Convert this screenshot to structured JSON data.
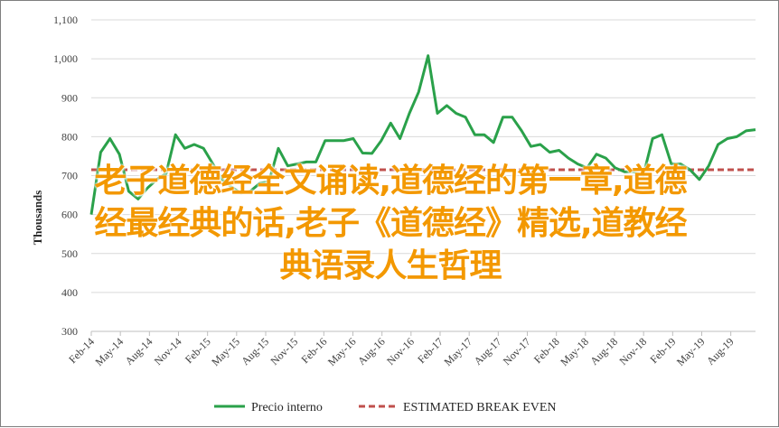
{
  "chart_data": {
    "type": "line",
    "ylabel": "Thousands",
    "ylim": [
      300,
      1100
    ],
    "yticks": [
      "300",
      "400",
      "500",
      "600",
      "700",
      "800",
      "900",
      "1,000",
      "1,100"
    ],
    "xticks": [
      "Feb-14",
      "May-14",
      "Aug-14",
      "Nov-14",
      "Feb-15",
      "May-15",
      "Aug-15",
      "Nov-15",
      "Feb-16",
      "May-16",
      "Aug-16",
      "Nov-16",
      "Feb-17",
      "May-17",
      "Aug-17",
      "Nov-17",
      "Feb-18",
      "May-18",
      "Aug-18",
      "Nov-18",
      "Feb-19",
      "May-19",
      "Aug-19"
    ],
    "grid": "horizontal",
    "legend_position": "bottom",
    "series": [
      {
        "name": "Precio interno",
        "color": "#2aa14a",
        "style": "solid",
        "values": [
          600,
          760,
          795,
          755,
          660,
          640,
          668,
          690,
          705,
          805,
          770,
          780,
          770,
          730,
          690,
          670,
          655,
          660,
          680,
          685,
          770,
          725,
          730,
          735,
          735,
          790,
          790,
          790,
          795,
          758,
          757,
          790,
          835,
          795,
          860,
          915,
          1008,
          860,
          880,
          860,
          850,
          805,
          805,
          785,
          850,
          850,
          815,
          775,
          780,
          760,
          765,
          745,
          730,
          720,
          755,
          745,
          720,
          710,
          710,
          700,
          795,
          805,
          730,
          730,
          715,
          690,
          725,
          780,
          795,
          800,
          815,
          818
        ]
      },
      {
        "name": "ESTIMATED BREAK EVEN",
        "color": "#c0504d",
        "style": "dashed",
        "values": [
          715,
          715,
          715,
          715,
          715,
          715,
          715,
          715,
          715,
          715,
          715,
          715,
          715,
          715,
          715,
          715,
          715,
          715,
          715,
          715,
          715,
          715,
          715,
          715,
          715,
          715,
          715,
          715,
          715,
          715,
          715,
          715,
          715,
          715,
          715,
          715,
          715,
          715,
          715,
          715,
          715,
          715,
          715,
          715,
          715,
          715,
          715,
          715,
          715,
          715,
          715,
          715,
          715,
          715,
          715,
          715,
          715,
          715,
          715,
          715,
          715,
          715,
          715,
          715,
          715,
          715,
          715,
          715,
          715,
          715,
          715,
          715
        ]
      }
    ]
  },
  "overlay": {
    "lines": [
      "老子道德经全文诵读,道德经的第一章,道德",
      "经最经典的话,老子《道德经》精选,道教经",
      "典语录人生哲理"
    ]
  }
}
